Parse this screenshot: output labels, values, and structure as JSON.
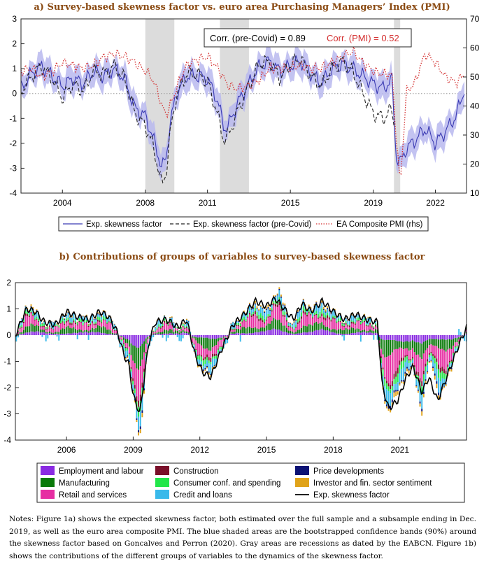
{
  "chart_data": [
    {
      "type": "line",
      "title": "a)   Survey-based skewness factor vs. euro area Purchasing Managers’ Index (PMI)",
      "ylim": [
        -4,
        3
      ],
      "y_ticks": [
        "3",
        "2",
        "1",
        "0",
        "-1",
        "-2",
        "-3",
        "-4"
      ],
      "y2lim": [
        10,
        70
      ],
      "y2_ticks": [
        "70",
        "60",
        "50",
        "40",
        "30",
        "20",
        "10"
      ],
      "xlim": [
        2002,
        2023.5
      ],
      "x_ticks": [
        {
          "v": 2004,
          "label": "2004"
        },
        {
          "v": 2008,
          "label": "2008"
        },
        {
          "v": 2011,
          "label": "2011"
        },
        {
          "v": 2015,
          "label": "2015"
        },
        {
          "v": 2019,
          "label": "2019"
        },
        {
          "v": 2022,
          "label": "2022"
        }
      ],
      "recessions": [
        [
          2008.0,
          2009.4
        ],
        [
          2011.6,
          2013.0
        ],
        [
          2020.0,
          2020.3
        ]
      ],
      "corr_label_1": "Corr. (pre-Covid) = 0.89",
      "corr_label_2": "Corr. (PMI) = 0.52",
      "series": [
        {
          "name": "Exp. skewness factor",
          "color": "#3b3bb3",
          "style": "solid",
          "x": [
            2002,
            2002.5,
            2003,
            2003.5,
            2004,
            2004.5,
            2005,
            2005.5,
            2006,
            2006.5,
            2007,
            2007.5,
            2008,
            2008.3,
            2008.6,
            2008.8,
            2009,
            2009.2,
            2009.5,
            2010,
            2010.5,
            2011,
            2011.5,
            2011.8,
            2012,
            2012.5,
            2013,
            2013.5,
            2014,
            2014.5,
            2015,
            2015.5,
            2016,
            2016.5,
            2017,
            2017.5,
            2018,
            2018.5,
            2019,
            2019.5,
            2019.9,
            2020.1,
            2020.3,
            2020.6,
            2021,
            2021.5,
            2022,
            2022.5,
            2023,
            2023.4
          ],
          "values": [
            0.2,
            0.8,
            1.1,
            0.7,
            0.3,
            0.6,
            0.4,
            0.9,
            0.7,
            1.0,
            0.6,
            -0.6,
            -0.9,
            -1.6,
            -2.4,
            -3.0,
            -2.6,
            -1.2,
            0.0,
            0.7,
            0.7,
            0.6,
            -0.3,
            -1.4,
            -1.3,
            -0.3,
            0.4,
            1.1,
            1.3,
            0.9,
            1.1,
            1.3,
            0.8,
            0.4,
            1.0,
            1.2,
            1.0,
            0.7,
            0.4,
            0.2,
            0.6,
            -2.5,
            -2.8,
            -2.2,
            -1.9,
            -1.4,
            -2.0,
            -1.5,
            -0.9,
            0.2
          ]
        },
        {
          "name": "Exp. skewness factor (pre-Covid)",
          "color": "#222222",
          "style": "dashed",
          "x": [
            2002,
            2002.5,
            2003,
            2003.5,
            2004,
            2004.5,
            2005,
            2005.5,
            2006,
            2006.5,
            2007,
            2007.5,
            2008,
            2008.3,
            2008.6,
            2008.8,
            2009,
            2009.2,
            2009.5,
            2010,
            2010.5,
            2011,
            2011.5,
            2011.8,
            2012,
            2012.5,
            2013,
            2013.5,
            2014,
            2014.5,
            2015,
            2015.5,
            2016,
            2016.5,
            2017,
            2017.5,
            2018,
            2018.5,
            2019,
            2019.5,
            2019.9,
            2020.0
          ],
          "values": [
            0.1,
            0.7,
            1.1,
            0.6,
            -0.2,
            0.4,
            0.1,
            0.9,
            0.8,
            1.1,
            0.6,
            -0.8,
            -1.3,
            -1.9,
            -2.9,
            -3.7,
            -3.2,
            -1.6,
            -0.1,
            0.8,
            0.8,
            0.5,
            -0.9,
            -1.9,
            -1.7,
            -0.6,
            0.3,
            1.2,
            1.3,
            0.6,
            1.2,
            1.4,
            0.7,
            0.3,
            1.0,
            1.3,
            0.9,
            0.0,
            -0.8,
            -1.0,
            -0.6,
            -1.2
          ]
        },
        {
          "name": "EA Composite PMI (rhs)",
          "color": "#d43030",
          "style": "dotted",
          "axis": "right",
          "x": [
            2002,
            2002.5,
            2003,
            2003.5,
            2004,
            2004.5,
            2005,
            2005.5,
            2006,
            2006.5,
            2007,
            2007.5,
            2008,
            2008.3,
            2008.6,
            2008.8,
            2009,
            2009.3,
            2009.6,
            2010,
            2010.5,
            2011,
            2011.5,
            2012,
            2012.5,
            2013,
            2013.5,
            2014,
            2014.5,
            2015,
            2015.5,
            2016,
            2016.5,
            2017,
            2017.5,
            2018,
            2018.5,
            2019,
            2019.5,
            2019.9,
            2020.1,
            2020.3,
            2020.6,
            2021,
            2021.5,
            2022,
            2022.5,
            2023,
            2023.4
          ],
          "values": [
            52,
            53,
            50,
            52,
            55,
            54,
            53,
            54,
            57,
            58,
            57,
            55,
            52,
            50,
            45,
            40,
            37,
            42,
            48,
            54,
            56,
            57,
            53,
            47,
            46,
            47,
            49,
            53,
            53,
            53,
            54,
            53,
            53,
            55,
            57,
            59,
            55,
            52,
            51,
            51,
            30,
            13,
            45,
            48,
            58,
            55,
            50,
            48,
            51
          ]
        }
      ],
      "band": {
        "name": "90% confidence band",
        "color": "#b9b9ef",
        "half_width": 0.45
      },
      "legend": [
        "Exp. skewness factor",
        "Exp. skewness factor (pre-Covid)",
        "EA Composite PMI (rhs)"
      ]
    },
    {
      "type": "bar",
      "title": "b)   Contributions of groups of variables to survey-based skewness factor",
      "ylim": [
        -4,
        2
      ],
      "y_ticks": [
        "2",
        "1",
        "0",
        "-1",
        "-2",
        "-3",
        "-4"
      ],
      "xlim": [
        2003.7,
        2024.0
      ],
      "x_ticks": [
        {
          "v": 2006,
          "label": "2006"
        },
        {
          "v": 2009,
          "label": "2009"
        },
        {
          "v": 2012,
          "label": "2012"
        },
        {
          "v": 2015,
          "label": "2015"
        },
        {
          "v": 2018,
          "label": "2018"
        },
        {
          "v": 2021,
          "label": "2021"
        }
      ],
      "stack_order": [
        "Employment and labour",
        "Manufacturing",
        "Retail and services",
        "Construction",
        "Consumer conf. and spending",
        "Credit and loans",
        "Price developments",
        "Investor and fin. sector sentiment"
      ],
      "stack_colors": [
        "#8a2be2",
        "#0a7a0a",
        "#e62ea2",
        "#7a0f2a",
        "#22e64a",
        "#39b9ea",
        "#0c1274",
        "#e0a31a"
      ],
      "stack_shares": [
        0.12,
        0.2,
        0.28,
        0.06,
        0.1,
        0.16,
        0.03,
        0.05
      ],
      "factor_line": {
        "name": "Exp. skewness factor",
        "color": "#000000",
        "x": [
          2003.7,
          2004.2,
          2004.6,
          2005.0,
          2005.5,
          2006.0,
          2006.5,
          2007.0,
          2007.5,
          2007.9,
          2008.3,
          2008.6,
          2008.8,
          2009.0,
          2009.3,
          2009.7,
          2010.0,
          2010.5,
          2011.0,
          2011.4,
          2011.8,
          2012.1,
          2012.5,
          2013.0,
          2013.5,
          2014.0,
          2014.5,
          2015.0,
          2015.4,
          2015.8,
          2016.2,
          2016.6,
          2017.0,
          2017.5,
          2018.0,
          2018.5,
          2019.0,
          2019.5,
          2020.0,
          2020.2,
          2020.5,
          2020.9,
          2021.3,
          2021.6,
          2022.0,
          2022.3,
          2022.7,
          2023.2,
          2023.6,
          2024.0
        ],
        "values": [
          0.0,
          1.0,
          0.9,
          0.5,
          0.4,
          0.9,
          0.7,
          0.6,
          0.9,
          0.7,
          0.1,
          -0.8,
          -1.1,
          -2.3,
          -3.0,
          -0.3,
          0.5,
          0.6,
          0.3,
          0.6,
          -0.8,
          -1.4,
          -1.6,
          -0.5,
          0.4,
          0.8,
          1.3,
          1.1,
          1.4,
          1.0,
          0.6,
          1.2,
          0.9,
          1.3,
          0.9,
          0.6,
          0.8,
          0.6,
          0.5,
          -1.9,
          -2.8,
          -2.5,
          -1.6,
          -1.2,
          -2.2,
          -1.6,
          -2.5,
          -1.4,
          -0.5,
          0.3
        ]
      },
      "legend": [
        {
          "label": "Employment and labour",
          "color": "#8a2be2"
        },
        {
          "label": "Construction",
          "color": "#7a0f2a"
        },
        {
          "label": "Price developments",
          "color": "#0c1274"
        },
        {
          "label": "Manufacturing",
          "color": "#0a7a0a"
        },
        {
          "label": "Consumer conf. and spending",
          "color": "#22e64a"
        },
        {
          "label": "Investor and fin. sector sentiment",
          "color": "#e0a31a"
        },
        {
          "label": "Retail and services",
          "color": "#e62ea2"
        },
        {
          "label": "Credit and loans",
          "color": "#39b9ea"
        },
        {
          "label": "Exp. skewness factor",
          "color": "#000000",
          "line": true
        }
      ]
    }
  ],
  "notes": "Notes: Figure 1a) shows the expected skewness factor, both estimated over the full sample and a subsample ending in Dec. 2019, as well as the euro area composite PMI. The blue shaded areas are the bootstrapped confidence bands (90%) around the skewness factor based on Goncalves and Perron (2020). Gray areas are recessions as dated by the EABCN. Figure 1b) shows the contributions of the different groups of variables to the dynamics of the skewness factor."
}
